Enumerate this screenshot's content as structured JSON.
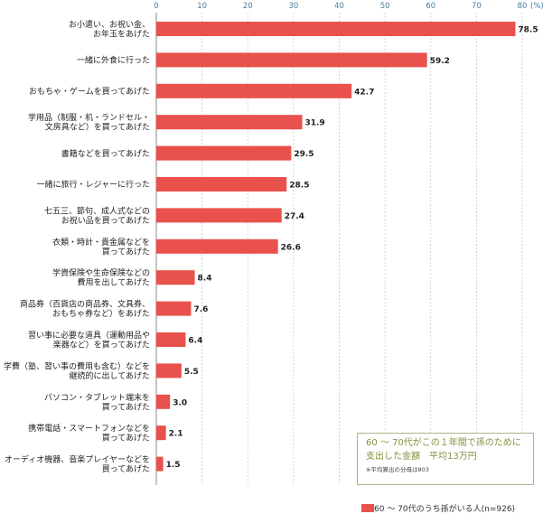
{
  "chart_data": {
    "type": "bar",
    "orientation": "horizontal",
    "unit_label": "(%)",
    "xlim": [
      0,
      80
    ],
    "x_ticks": [
      0,
      10,
      20,
      30,
      40,
      50,
      60,
      70,
      80
    ],
    "grid": true,
    "bar_color": "#e8514c",
    "categories": [
      [
        "お小遣い、お祝い金、",
        "お年玉をあげた"
      ],
      [
        "一緒に外食に行った"
      ],
      [
        "おもちゃ・ゲームを買ってあげた"
      ],
      [
        "学用品（制服・机・ランドセル・",
        "文房具など）を買ってあげた"
      ],
      [
        "書籍などを買ってあげた"
      ],
      [
        "一緒に旅行・レジャーに行った"
      ],
      [
        "七五三、節句、成人式などの",
        "お祝い品を買ってあげた"
      ],
      [
        "衣類・時計・貴金属などを",
        "買ってあげた"
      ],
      [
        "学資保険や生命保険などの",
        "費用を出してあげた"
      ],
      [
        "商品券（百貨店の商品券、文具券、",
        "おもちゃ券など）をあげた"
      ],
      [
        "習い事に必要な道具（運動用品や",
        "楽器など）を買ってあげた"
      ],
      [
        "学費（塾、習い事の費用も含む）などを",
        "継続的に出してあげた"
      ],
      [
        "パソコン・タブレット端末を",
        "買ってあげた"
      ],
      [
        "携帯電話・スマートフォンなどを",
        "買ってあげた"
      ],
      [
        "オーディオ機器、音楽プレイヤーなどを",
        "買ってあげた"
      ]
    ],
    "values": [
      78.5,
      59.2,
      42.7,
      31.9,
      29.5,
      28.5,
      27.4,
      26.6,
      8.4,
      7.6,
      6.4,
      5.5,
      3.0,
      2.1,
      1.5
    ],
    "value_labels": [
      "78.5",
      "59.2",
      "42.7",
      "31.9",
      "29.5",
      "28.5",
      "27.4",
      "26.6",
      "8.4",
      "7.6",
      "6.4",
      "5.5",
      "3.0",
      "2.1",
      "1.5"
    ],
    "legend": {
      "label": "60 ～ 70代のうち孫がいる人(n=926)",
      "placement": "bottom-right"
    }
  },
  "summary": {
    "line1": "60 ～ 70代がこの１年間で孫のために",
    "line2": "支出した金額　平均13万円",
    "note": "※平均算出の分母は803"
  }
}
